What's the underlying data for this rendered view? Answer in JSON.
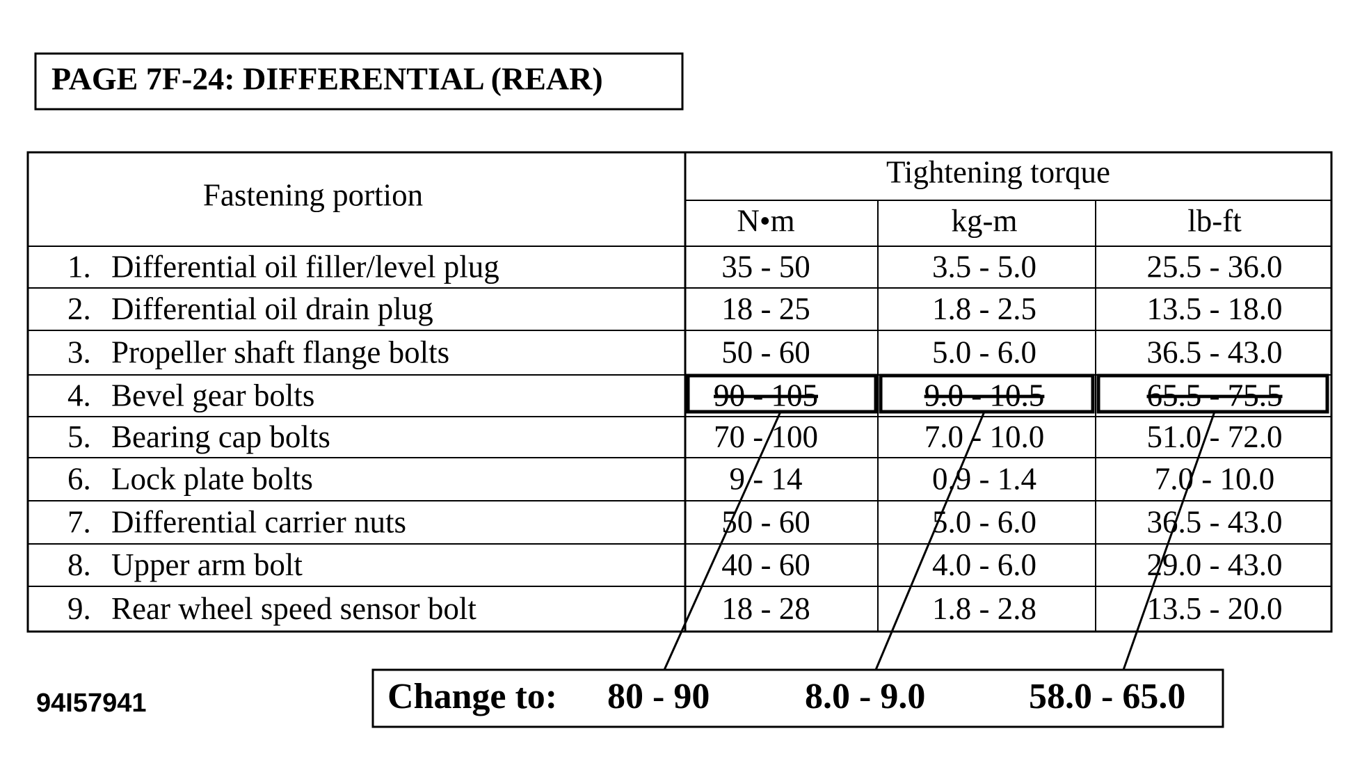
{
  "title": "PAGE 7F-24:  DIFFERENTIAL (REAR)",
  "table": {
    "header": {
      "fastening": "Fastening portion",
      "torque": "Tightening torque",
      "units": [
        "N•m",
        "kg-m",
        "lb-ft"
      ]
    },
    "rows": [
      {
        "number": "1.",
        "portion": "Differential oil filler/level plug",
        "values": [
          "35 - 50",
          "3.5 - 5.0",
          "25.5 - 36.0"
        ]
      },
      {
        "number": "2.",
        "portion": "Differential oil drain plug",
        "values": [
          "18 - 25",
          "1.8 - 2.5",
          "13.5 - 18.0"
        ]
      },
      {
        "number": "3.",
        "portion": "Propeller shaft flange bolts",
        "values": [
          "50 - 60",
          "5.0 - 6.0",
          "36.5 - 43.0"
        ]
      },
      {
        "number": "4.",
        "portion": "Bevel gear bolts",
        "values": [
          "90 - 105",
          "9.0 - 10.5",
          "65.5 - 75.5"
        ]
      },
      {
        "number": "5.",
        "portion": "Bearing cap bolts",
        "values": [
          "70 - 100",
          "7.0 - 10.0",
          "51.0 - 72.0"
        ]
      },
      {
        "number": "6.",
        "portion": "Lock plate bolts",
        "values": [
          "9 - 14",
          "0.9 - 1.4",
          "7.0 - 10.0"
        ]
      },
      {
        "number": "7.",
        "portion": "Differential carrier nuts",
        "values": [
          "50 - 60",
          "5.0 - 6.0",
          "36.5 - 43.0"
        ]
      },
      {
        "number": "8.",
        "portion": "Upper arm bolt",
        "values": [
          "40 - 60",
          "4.0 - 6.0",
          "29.0 - 43.0"
        ]
      },
      {
        "number": "9.",
        "portion": "Rear wheel speed sensor bolt",
        "values": [
          "18 - 28",
          "1.8 - 2.8",
          "13.5 - 20.0"
        ]
      }
    ]
  },
  "change": {
    "label": "Change to:",
    "values": [
      "80 - 90",
      "8.0 - 9.0",
      "58.0 - 65.0"
    ]
  },
  "figure_id": "94I57941"
}
